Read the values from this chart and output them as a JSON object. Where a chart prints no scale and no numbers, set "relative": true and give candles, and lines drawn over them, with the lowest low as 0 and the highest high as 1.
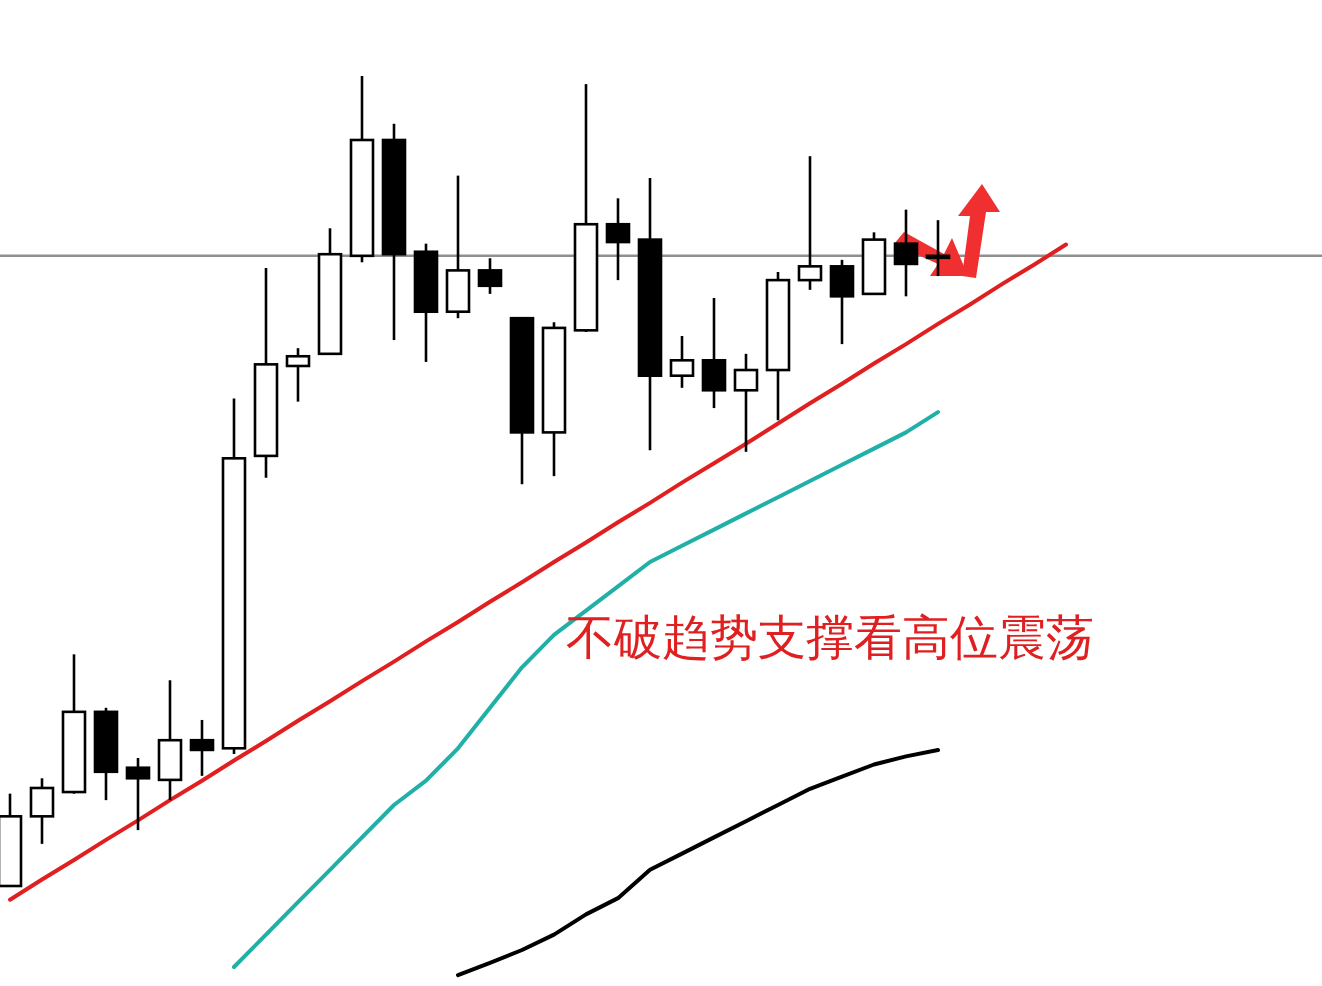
{
  "chart_data": {
    "type": "candlestick",
    "relative": true,
    "categories": [
      null,
      null,
      null,
      null,
      null,
      null,
      null,
      null,
      null,
      null,
      null,
      null,
      null,
      null,
      null,
      null,
      null,
      null,
      null,
      null,
      null,
      null,
      null,
      null,
      null,
      null,
      null,
      null,
      null,
      null,
      null,
      null,
      null,
      null
    ],
    "ohlc": [
      [
        0,
        0.114,
        0,
        0.086
      ],
      [
        0.086,
        0.133,
        0.052,
        0.121
      ],
      [
        0.116,
        0.286,
        0.114,
        0.215
      ],
      [
        0.215,
        0.22,
        0.106,
        0.141
      ],
      [
        0.146,
        0.158,
        0.069,
        0.133
      ],
      [
        0.131,
        0.254,
        0.106,
        0.18
      ],
      [
        0.18,
        0.205,
        0.136,
        0.168
      ],
      [
        0.17,
        0.602,
        0.163,
        0.528
      ],
      [
        0.531,
        0.763,
        0.504,
        0.644
      ],
      [
        0.642,
        0.664,
        0.598,
        0.654
      ],
      [
        0.657,
        0.812,
        0.657,
        0.78
      ],
      [
        0.778,
        1,
        0.77,
        0.921
      ],
      [
        0.921,
        0.941,
        0.674,
        0.78
      ],
      [
        0.783,
        0.793,
        0.647,
        0.709
      ],
      [
        0.709,
        0.877,
        0.701,
        0.76
      ],
      [
        0.76,
        0.775,
        0.731,
        0.741
      ],
      [
        0.701,
        0.701,
        0.496,
        0.56
      ],
      [
        0.56,
        0.696,
        0.506,
        0.689
      ],
      [
        0.686,
        0.99,
        0.684,
        0.817
      ],
      [
        0.817,
        0.849,
        0.748,
        0.795
      ],
      [
        0.798,
        0.874,
        0.538,
        0.63
      ],
      [
        0.63,
        0.679,
        0.615,
        0.649
      ],
      [
        0.649,
        0.726,
        0.59,
        0.612
      ],
      [
        0.612,
        0.657,
        0.536,
        0.637
      ],
      [
        0.637,
        0.758,
        0.575,
        0.748
      ],
      [
        0.748,
        0.901,
        0.736,
        0.765
      ],
      [
        0.765,
        0.773,
        0.669,
        0.728
      ],
      [
        0.731,
        0.807,
        0.731,
        0.798
      ],
      [
        0.793,
        0.835,
        0.728,
        0.768
      ],
      [
        0.778,
        0.822,
        0.753,
        0.778
      ],
      null,
      null,
      null,
      null
    ],
    "colors": [
      "#ffffff",
      "#ffffff",
      "#ffffff",
      "#000000",
      "#000000",
      "#ffffff",
      "#000000",
      "#ffffff",
      "#ffffff",
      "#ffffff",
      "#ffffff",
      "#ffffff",
      "#000000",
      "#000000",
      "#ffffff",
      "#000000",
      "#000000",
      "#ffffff",
      "#ffffff",
      "#000000",
      "#000000",
      "#ffffff",
      "#000000",
      "#ffffff",
      "#ffffff",
      "#ffffff",
      "#000000",
      "#ffffff",
      "#000000",
      "#ffffff",
      null,
      null,
      null,
      null
    ],
    "series": [
      {
        "type": "line",
        "color": "#e02020",
        "values": [
          -0.017,
          0.008,
          0.032,
          0.057,
          0.081,
          0.106,
          0.13,
          0.155,
          0.179,
          0.204,
          0.228,
          0.253,
          0.277,
          0.302,
          0.326,
          0.351,
          0.375,
          0.4,
          0.424,
          0.449,
          0.473,
          0.498,
          0.522,
          0.546,
          0.571,
          0.596,
          0.62,
          0.645,
          0.669,
          0.694,
          0.718,
          0.743,
          0.767,
          0.792
        ]
      },
      {
        "type": "line",
        "color": "#20b0a8",
        "values": [
          null,
          null,
          null,
          null,
          null,
          null,
          null,
          -0.1,
          -0.06,
          -0.02,
          0.02,
          0.06,
          0.1,
          0.13,
          0.17,
          0.22,
          0.27,
          0.31,
          0.34,
          0.37,
          0.4,
          0.42,
          0.44,
          0.46,
          0.48,
          0.5,
          0.52,
          0.54,
          0.56,
          0.585,
          null,
          null,
          null,
          null
        ]
      },
      {
        "type": "line",
        "color": "#000000",
        "values": [
          null,
          null,
          null,
          null,
          null,
          null,
          null,
          null,
          null,
          null,
          null,
          null,
          null,
          null,
          -0.11,
          -0.095,
          -0.079,
          -0.06,
          -0.035,
          -0.015,
          0.02,
          0.04,
          0.06,
          0.08,
          0.1,
          0.12,
          0.135,
          0.15,
          0.16,
          0.168,
          null,
          null,
          null,
          null
        ]
      }
    ],
    "ref_lines": [
      {
        "axis": "y",
        "value": 0.778,
        "color": "#909090"
      }
    ],
    "annotations": [
      "不破趋势支撑看高位震荡"
    ]
  }
}
